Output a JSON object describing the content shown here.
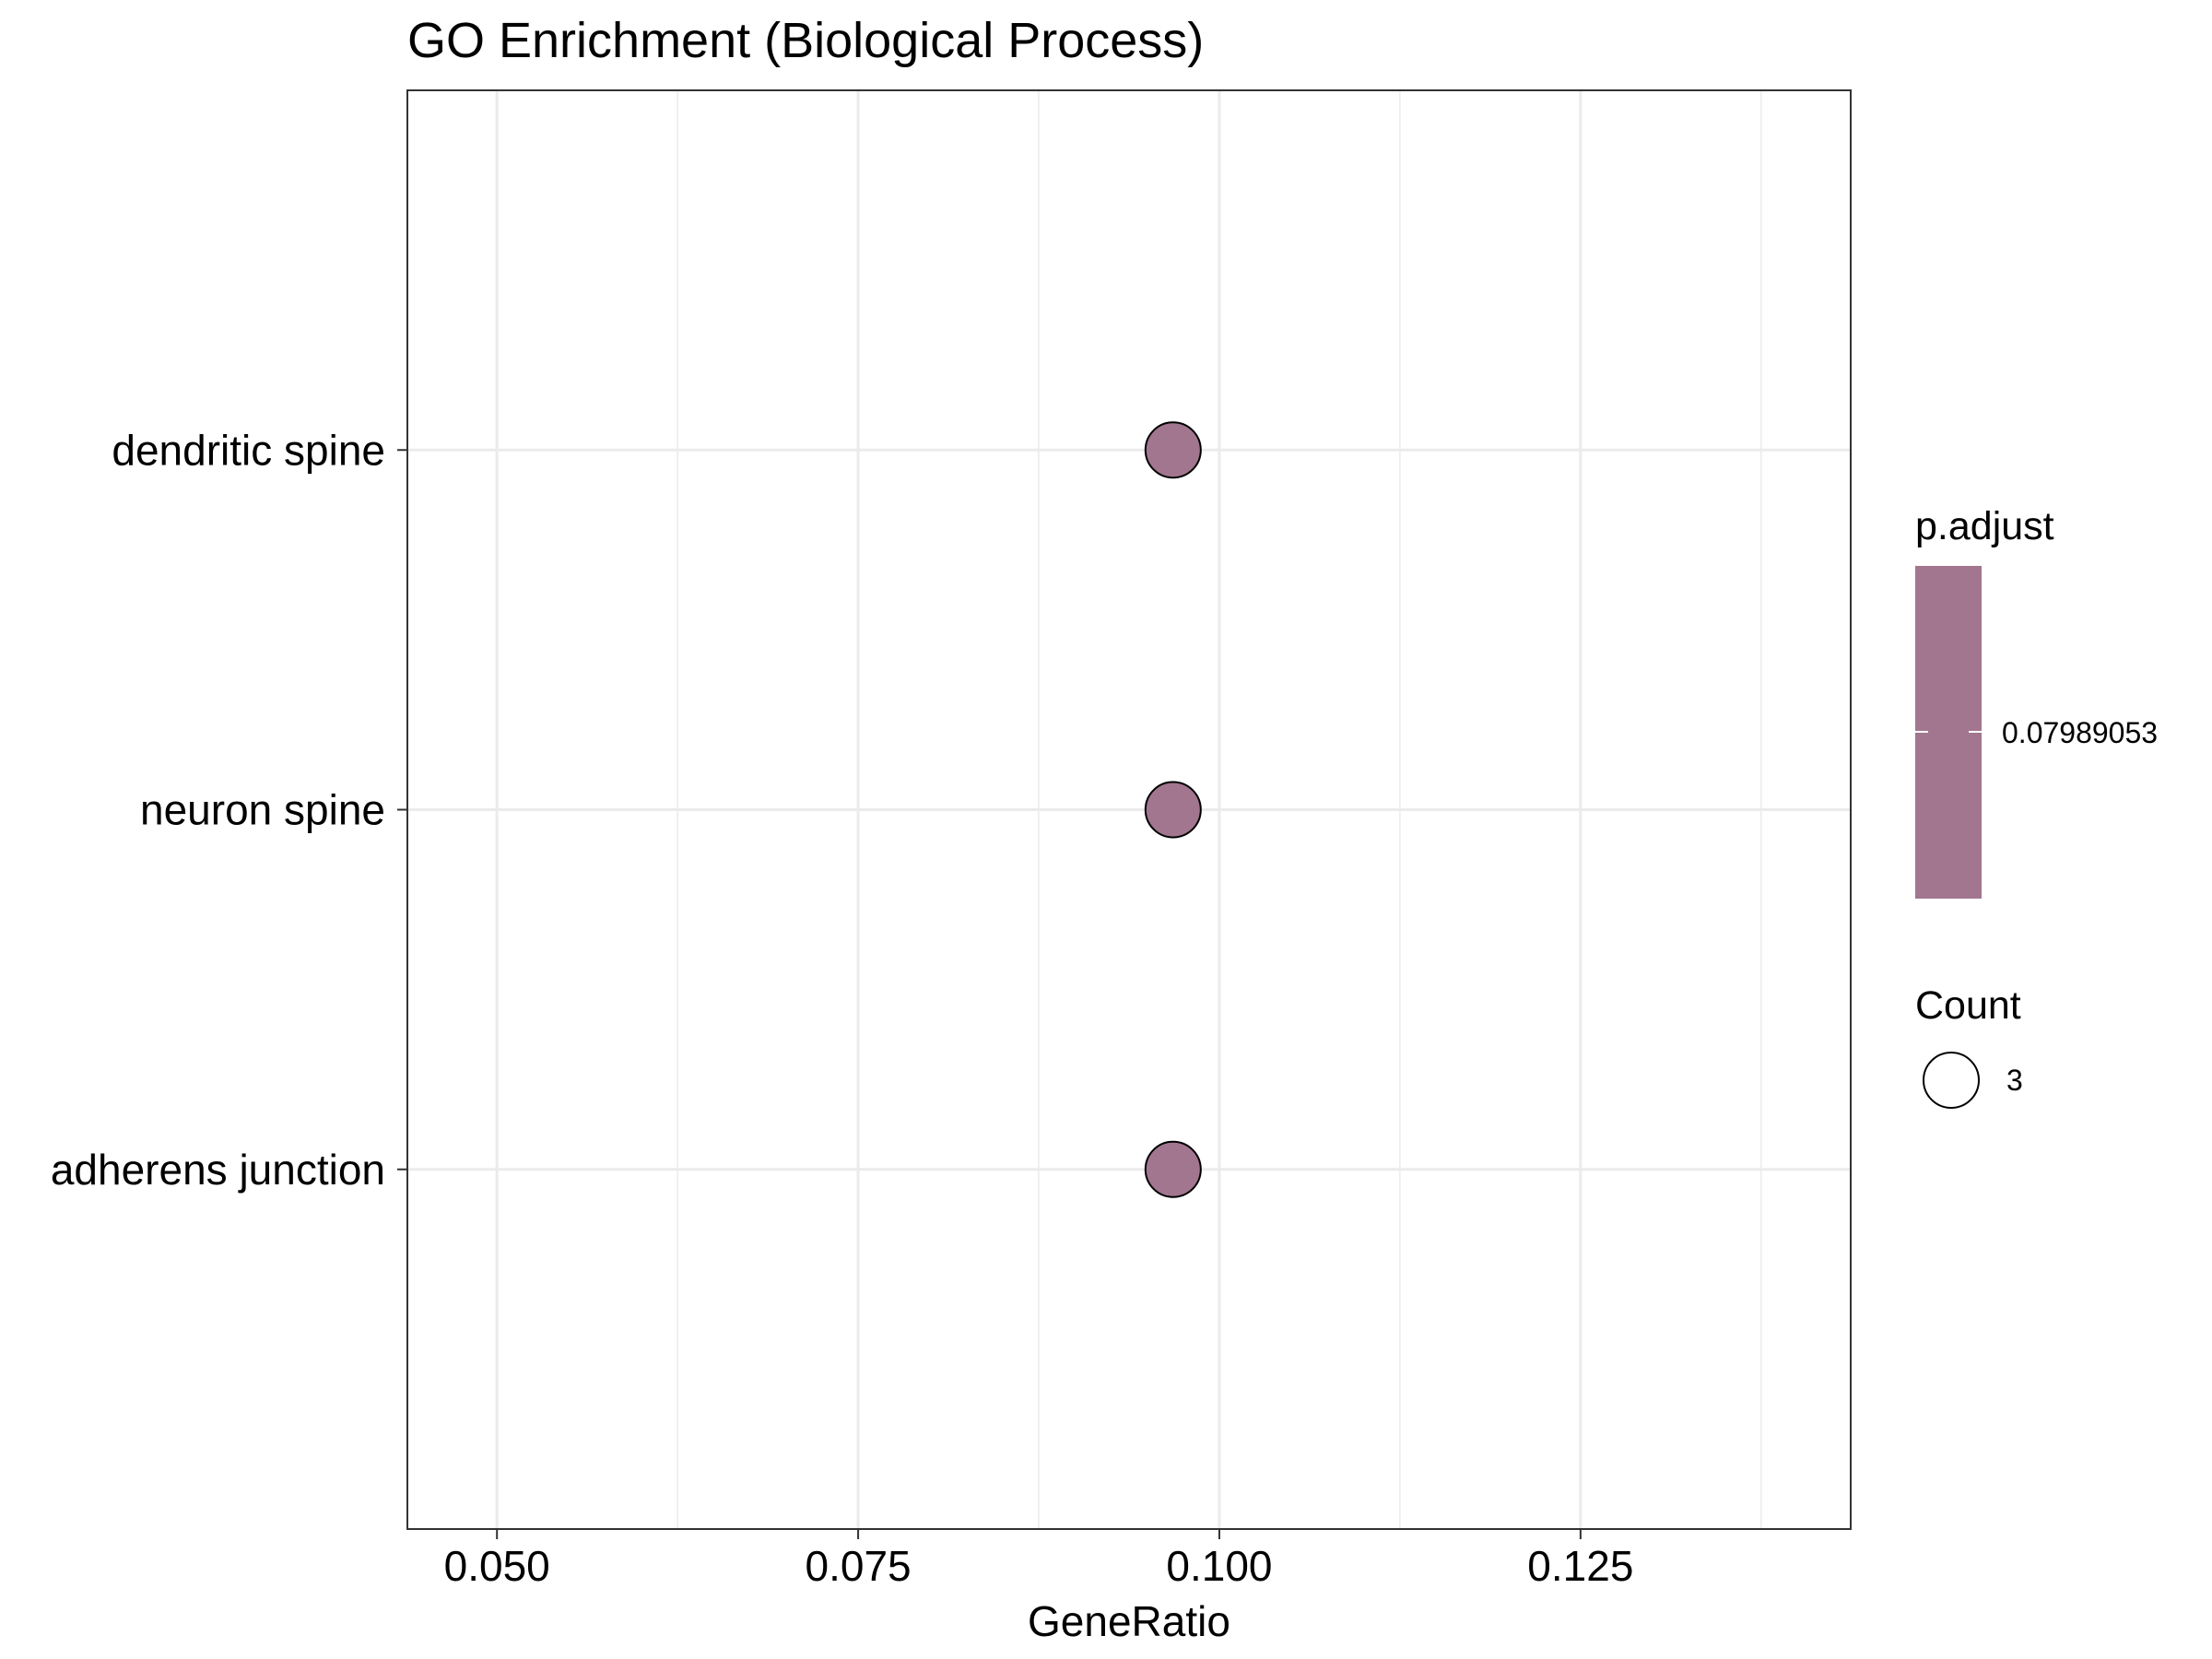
{
  "chart_data": {
    "type": "scatter",
    "title": "GO Enrichment (Biological Process)",
    "xlabel": "GeneRatio",
    "ylabel": "",
    "xlim": [
      0.0438,
      0.1437
    ],
    "x_ticks": [
      "0.050",
      "0.075",
      "0.100",
      "0.125"
    ],
    "x_tick_values": [
      0.05,
      0.075,
      0.1,
      0.125
    ],
    "categories": [
      "dendritic spine",
      "neuron spine",
      "adherens junction"
    ],
    "points": [
      {
        "term": "dendritic spine",
        "x": 0.0968,
        "count": 3,
        "p_adjust": 0.07989053
      },
      {
        "term": "neuron spine",
        "x": 0.0968,
        "count": 3,
        "p_adjust": 0.07989053
      },
      {
        "term": "adherens junction",
        "x": 0.0968,
        "count": 3,
        "p_adjust": 0.07989053
      }
    ],
    "grid": true,
    "legend": {
      "position": "right",
      "color": {
        "title": "p.adjust",
        "label": "0.07989053",
        "color": "#a2768f"
      },
      "size": {
        "title": "Count",
        "label": "3"
      }
    },
    "point_color": "#a2768f"
  }
}
